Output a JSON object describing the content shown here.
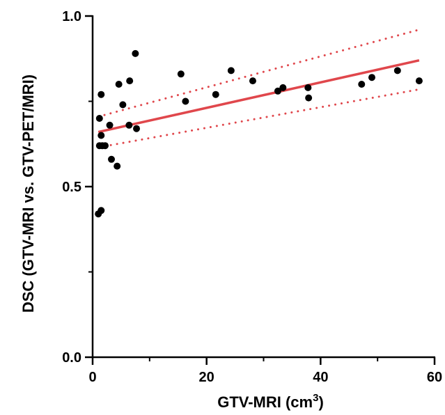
{
  "chart_data": {
    "type": "scatter",
    "title": "",
    "xlabel": "GTV-MRI (cm",
    "xlabel_superscript": "3",
    "xlabel_suffix": ")",
    "ylabel": "DSC (GTV-MRI vs. GTV-PET/MRI)",
    "xlim": [
      0,
      60
    ],
    "ylim": [
      0.0,
      1.0
    ],
    "x_ticks": [
      0,
      20,
      40,
      60
    ],
    "x_tick_labels": [
      "0",
      "20",
      "40",
      "60"
    ],
    "y_ticks": [
      0.0,
      0.5,
      1.0
    ],
    "y_tick_labels": [
      "0.0",
      "0.5",
      "1.0"
    ],
    "grid": false,
    "legend": "none",
    "colors": {
      "points": "#000000",
      "fit": "#e0474c",
      "axes": "#000000"
    },
    "points": [
      {
        "x": 1.0,
        "y": 0.42
      },
      {
        "x": 1.5,
        "y": 0.43
      },
      {
        "x": 1.2,
        "y": 0.62
      },
      {
        "x": 1.7,
        "y": 0.62
      },
      {
        "x": 2.2,
        "y": 0.62
      },
      {
        "x": 1.5,
        "y": 0.65
      },
      {
        "x": 1.2,
        "y": 0.7
      },
      {
        "x": 1.5,
        "y": 0.77
      },
      {
        "x": 3.0,
        "y": 0.68
      },
      {
        "x": 3.3,
        "y": 0.58
      },
      {
        "x": 4.3,
        "y": 0.56
      },
      {
        "x": 4.6,
        "y": 0.8
      },
      {
        "x": 5.3,
        "y": 0.74
      },
      {
        "x": 6.4,
        "y": 0.68
      },
      {
        "x": 6.5,
        "y": 0.81
      },
      {
        "x": 7.5,
        "y": 0.89
      },
      {
        "x": 7.7,
        "y": 0.67
      },
      {
        "x": 15.5,
        "y": 0.83
      },
      {
        "x": 16.3,
        "y": 0.75
      },
      {
        "x": 21.6,
        "y": 0.77
      },
      {
        "x": 24.3,
        "y": 0.84
      },
      {
        "x": 28.1,
        "y": 0.81
      },
      {
        "x": 32.5,
        "y": 0.78
      },
      {
        "x": 33.4,
        "y": 0.79
      },
      {
        "x": 37.8,
        "y": 0.79
      },
      {
        "x": 37.9,
        "y": 0.76
      },
      {
        "x": 47.2,
        "y": 0.8
      },
      {
        "x": 49.0,
        "y": 0.82
      },
      {
        "x": 53.5,
        "y": 0.84
      },
      {
        "x": 57.3,
        "y": 0.81
      }
    ],
    "fit_line": {
      "x": [
        1.0,
        57.3
      ],
      "y": [
        0.66,
        0.87
      ]
    },
    "ci_upper": {
      "x": [
        1.0,
        57.3
      ],
      "y": [
        0.705,
        0.96
      ]
    },
    "ci_lower": {
      "x": [
        1.0,
        57.3
      ],
      "y": [
        0.615,
        0.785
      ]
    }
  }
}
